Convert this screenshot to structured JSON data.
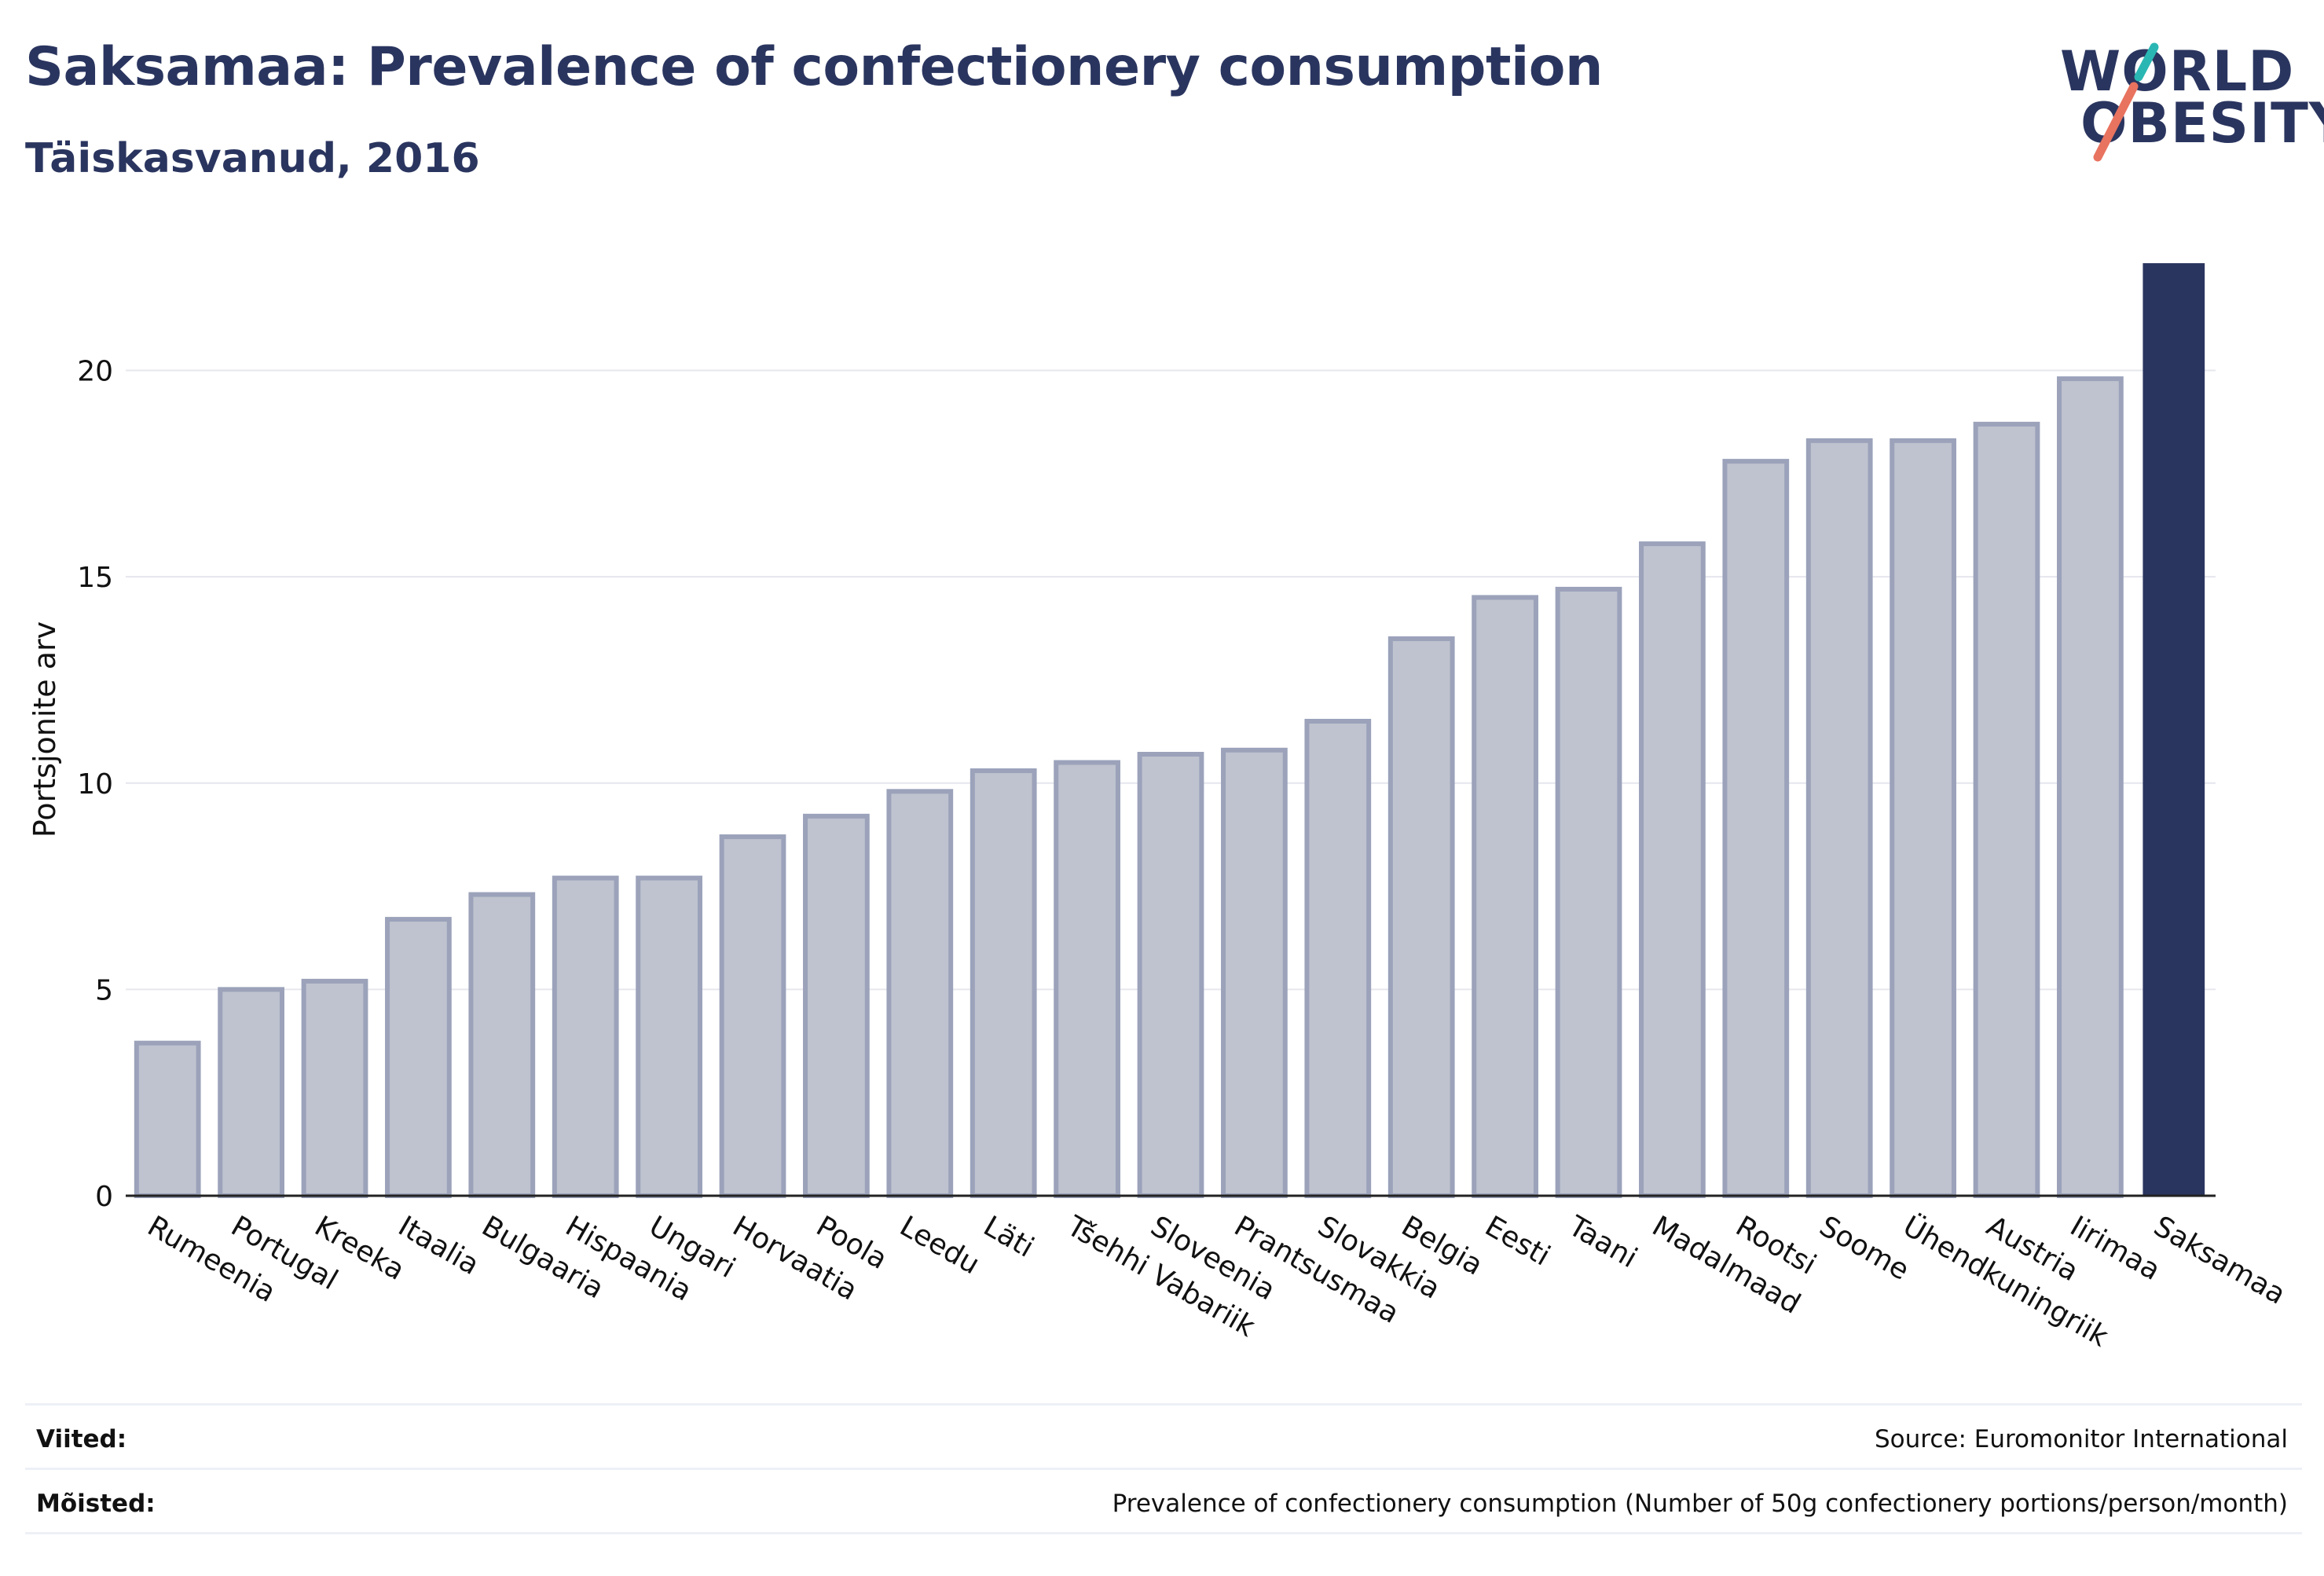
{
  "header": {
    "title": "Saksamaa: Prevalence of confectionery consumption",
    "subtitle": "Täiskasvanud, 2016"
  },
  "logo": {
    "line1": "WORLD",
    "line2": "OBESITY"
  },
  "colors": {
    "highlight": "#2a355f",
    "bar_fill": "#bfc3cf",
    "bar_stroke": "#9ba2ba",
    "grid": "#e6e7ee",
    "logo_teal": "#2ab7b3",
    "logo_red": "#e8735f"
  },
  "chart_data": {
    "type": "bar",
    "ylabel": "Portsjonite arv",
    "ylim": [
      0,
      22.6
    ],
    "yticks": [
      0,
      5,
      10,
      15,
      20
    ],
    "grid": true,
    "highlight": "Saksamaa",
    "categories": [
      "Rumeenia",
      "Portugal",
      "Kreeka",
      "Itaalia",
      "Bulgaaria",
      "Hispaania",
      "Ungari",
      "Horvaatia",
      "Poola",
      "Leedu",
      "Läti",
      "Tšehhi Vabariik",
      "Sloveenia",
      "Prantsusmaa",
      "Slovakkia",
      "Belgia",
      "Eesti",
      "Taani",
      "Madalmaad",
      "Rootsi",
      "Soome",
      "Ühendkuningriik",
      "Austria",
      "Iirimaa",
      "Saksamaa"
    ],
    "values": [
      3.7,
      5.0,
      5.2,
      6.7,
      7.3,
      7.7,
      7.7,
      8.7,
      9.2,
      9.8,
      10.3,
      10.5,
      10.7,
      10.8,
      11.5,
      13.5,
      14.5,
      14.7,
      15.8,
      17.8,
      18.3,
      18.3,
      18.7,
      19.8,
      22.6
    ]
  },
  "footer": {
    "references_label": "Viited:",
    "references_value": "Source: Euromonitor International",
    "definitions_label": "Mõisted:",
    "definitions_value": "Prevalence of confectionery consumption (Number of 50g confectionery portions/person/month)"
  }
}
